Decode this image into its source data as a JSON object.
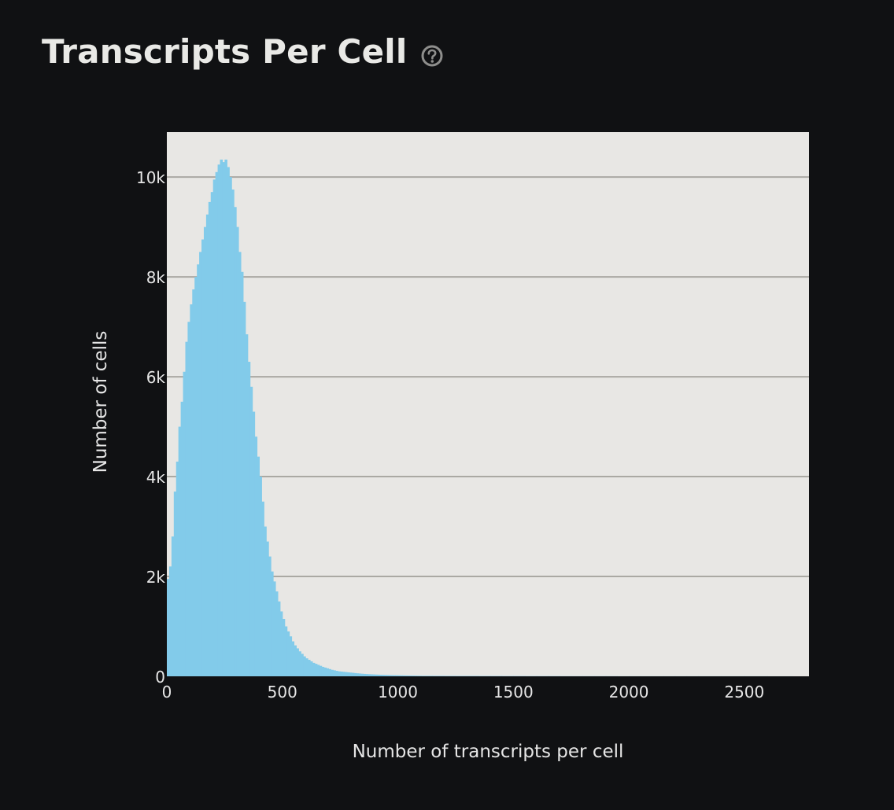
{
  "header": {
    "title": "Transcripts Per Cell",
    "help_icon": "question-circle-icon"
  },
  "colors": {
    "background": "#101113",
    "plot_background": "#e8e7e4",
    "bar": "#82cbea",
    "grid": "#aaa9a3",
    "text": "#e6e6e6"
  },
  "chart_data": {
    "type": "bar",
    "title": "",
    "xlabel": "Number of transcripts per cell",
    "ylabel": "Number of cells",
    "xlim": [
      0,
      2780
    ],
    "ylim": [
      0,
      10900
    ],
    "x_ticks": [
      0,
      500,
      1000,
      1500,
      2000,
      2500
    ],
    "x_tick_labels": [
      "0",
      "500",
      "1000",
      "1500",
      "2000",
      "2500"
    ],
    "y_ticks": [
      0,
      2000,
      4000,
      6000,
      8000,
      10000
    ],
    "y_tick_labels": [
      "0",
      "2k",
      "4k",
      "6k",
      "8k",
      "10k"
    ],
    "grid": "horizontal",
    "legend": "none",
    "bin_width": 10,
    "series": [
      {
        "x": [
          0,
          10,
          20,
          30,
          40,
          50,
          60,
          70,
          80,
          90,
          100,
          110,
          120,
          130,
          140,
          150,
          160,
          170,
          180,
          190,
          200,
          210,
          220,
          230,
          240,
          250,
          260,
          270,
          280,
          290,
          300,
          310,
          320,
          330,
          340,
          350,
          360,
          370,
          380,
          390,
          400,
          410,
          420,
          430,
          440,
          450,
          460,
          470,
          480,
          490,
          500,
          510,
          520,
          530,
          540,
          550,
          560,
          570,
          580,
          590,
          600,
          610,
          620,
          630,
          640,
          650,
          660,
          670,
          680,
          690,
          700,
          710,
          720,
          730,
          740,
          750,
          760,
          770,
          780,
          790,
          800,
          810,
          820,
          830,
          840,
          850,
          860,
          870,
          880,
          890,
          900,
          910,
          920,
          930,
          940,
          950,
          960,
          970,
          980,
          990,
          1000,
          1010,
          1020,
          1030,
          1040,
          1050,
          1060,
          1070,
          1080,
          1090,
          1100,
          1150,
          1200,
          1250,
          1300,
          1350,
          1400,
          1450,
          1500,
          1550,
          1600,
          1650,
          1700,
          1750,
          1800,
          1850,
          1900,
          1950,
          2000,
          2050,
          2100,
          2150,
          2200,
          2250,
          2300,
          2400,
          2500,
          2600,
          2700
        ],
        "values": [
          1950,
          2200,
          2800,
          3700,
          4300,
          5000,
          5500,
          6100,
          6700,
          7100,
          7450,
          7750,
          8000,
          8250,
          8500,
          8750,
          9000,
          9250,
          9500,
          9700,
          9950,
          10100,
          10250,
          10350,
          10300,
          10350,
          10200,
          10000,
          9750,
          9400,
          9000,
          8500,
          8100,
          7500,
          6850,
          6300,
          5800,
          5300,
          4800,
          4400,
          4000,
          3500,
          3000,
          2700,
          2400,
          2100,
          1900,
          1700,
          1500,
          1300,
          1150,
          1000,
          900,
          800,
          700,
          620,
          560,
          500,
          450,
          400,
          360,
          330,
          300,
          270,
          250,
          230,
          210,
          190,
          175,
          160,
          145,
          130,
          120,
          110,
          100,
          95,
          90,
          85,
          80,
          75,
          70,
          65,
          60,
          56,
          52,
          48,
          45,
          42,
          40,
          38,
          35,
          33,
          31,
          29,
          27,
          26,
          24,
          23,
          22,
          21,
          20,
          19,
          18,
          17,
          16,
          15,
          14,
          13,
          12,
          11,
          10,
          9,
          8,
          7,
          7,
          6,
          6,
          5,
          5,
          4,
          4,
          4,
          3,
          3,
          3,
          3,
          3,
          2,
          2,
          2,
          2,
          2,
          2,
          2,
          2,
          2,
          2,
          1,
          1
        ]
      }
    ]
  }
}
